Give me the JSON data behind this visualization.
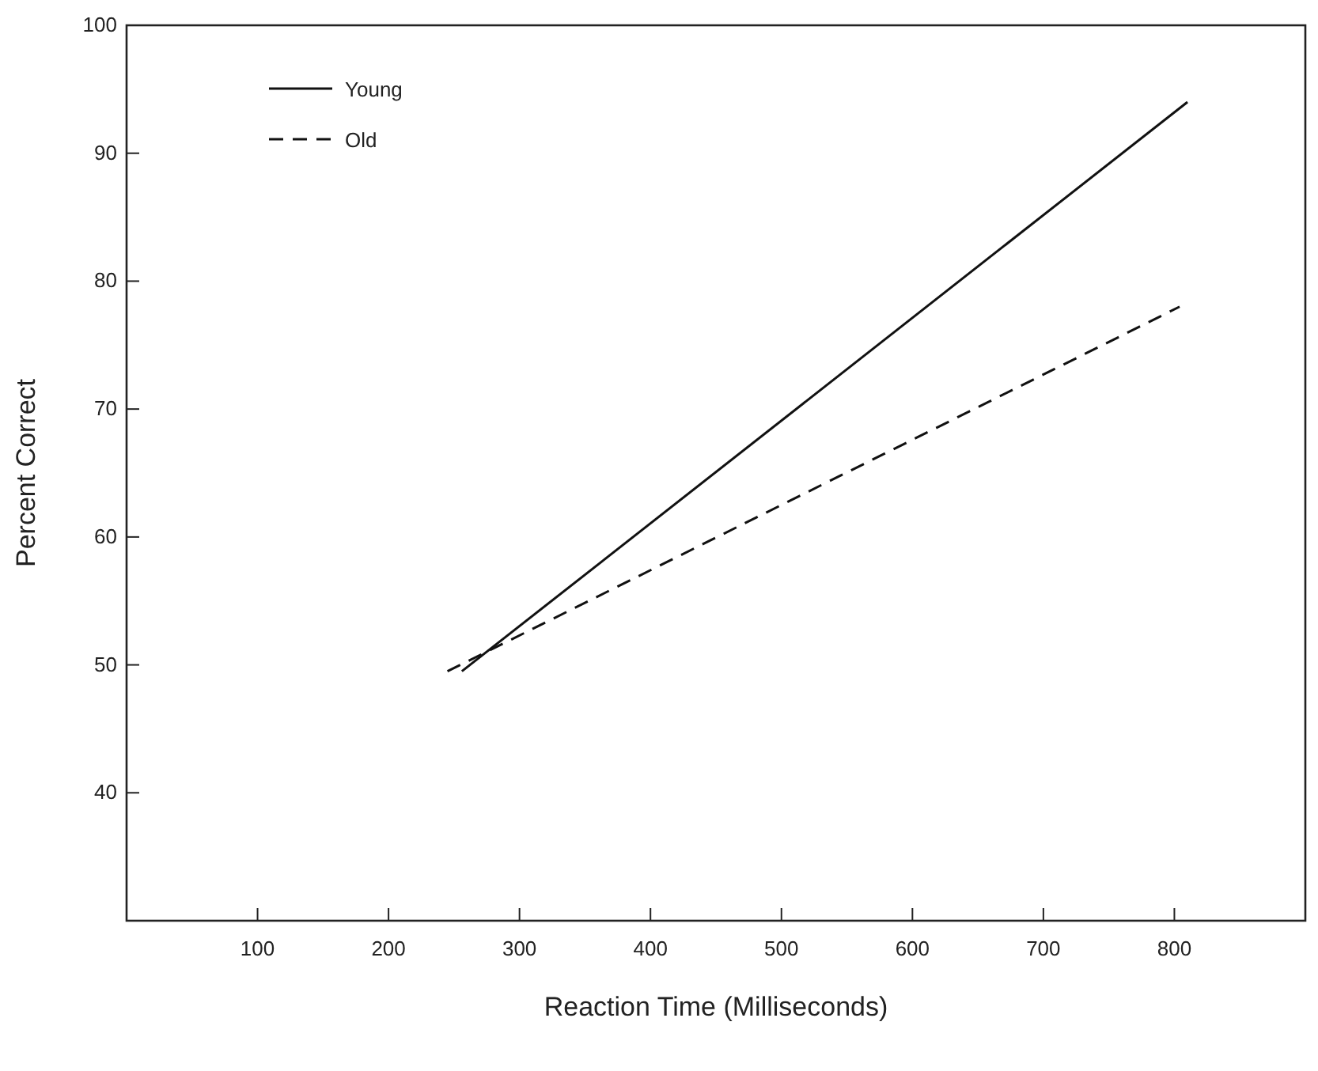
{
  "chart_data": {
    "type": "line",
    "xlabel": "Reaction Time (Milliseconds)",
    "ylabel": "Percent Correct",
    "xlim": [
      0,
      900
    ],
    "xticks": [
      100,
      200,
      300,
      400,
      500,
      600,
      700,
      800
    ],
    "ylim": [
      30,
      100
    ],
    "yticks": [
      40,
      50,
      60,
      70,
      80,
      90,
      100
    ],
    "series": [
      {
        "name": "Young",
        "color": "#111111",
        "x": [
          256,
          810
        ],
        "values": [
          49.5,
          94
        ],
        "line_style": "solid"
      },
      {
        "name": "Old",
        "color": "#111111",
        "x": [
          245,
          804
        ],
        "values": [
          49.5,
          78
        ],
        "line_style": "dashed"
      }
    ],
    "legend": "top left",
    "grid": false,
    "marker": "none"
  }
}
